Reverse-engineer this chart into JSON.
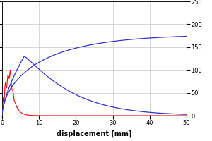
{
  "xlabel": "displacement [mm]",
  "xlabel_fontsize": 7,
  "xlabel_fontweight": "bold",
  "xlim": [
    0,
    50
  ],
  "left_ylim": [
    0,
    250
  ],
  "right_ylim": [
    0,
    250
  ],
  "yticks": [
    0,
    50,
    100,
    150,
    200,
    250
  ],
  "xticks": [
    0,
    10,
    20,
    30,
    40,
    50
  ],
  "background_color": "#ffffff",
  "grid_color": "#c8c8c8",
  "red_color": "#ff0000",
  "blue_color": "#3333cc",
  "figsize": [
    3.0,
    2.0
  ],
  "dpi": 100
}
